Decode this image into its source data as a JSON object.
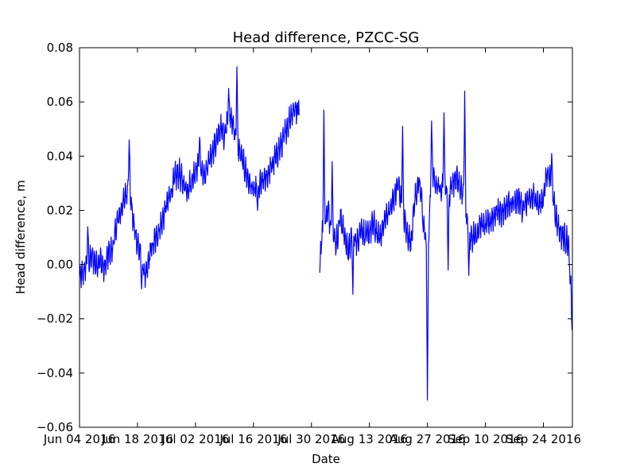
{
  "chart_data": {
    "type": "line",
    "title": "Head difference, PZCC-SG",
    "xlabel": "Date",
    "ylabel": "Head difference, m",
    "x_range": [
      "2016-06-04",
      "2016-10-01"
    ],
    "ylim": [
      -0.06,
      0.08
    ],
    "grid": false,
    "legend": "none",
    "line_color": "#0000ff",
    "x_tick_labels": [
      "Jun 04 2016",
      "Jun 18 2016",
      "Jul 02 2016",
      "Jul 16 2016",
      "Jul 30 2016",
      "Aug 13 2016",
      "Aug 27 2016",
      "Sep 10 2016",
      "Sep 24 2016"
    ],
    "x_tick_dates": [
      "2016-06-04",
      "2016-06-18",
      "2016-07-02",
      "2016-07-16",
      "2016-07-30",
      "2016-08-13",
      "2016-08-27",
      "2016-09-10",
      "2016-09-24"
    ],
    "y_ticks": [
      -0.06,
      -0.04,
      -0.02,
      0.0,
      0.02,
      0.04,
      0.06,
      0.08
    ],
    "y_tick_labels": [
      "−0.06",
      "−0.04",
      "−0.02",
      "0.00",
      "0.02",
      "0.04",
      "0.06",
      "0.08"
    ],
    "series": [
      {
        "segments": [
          [
            [
              "2016-06-04",
              -0.005
            ],
            [
              "2016-06-05",
              -0.003
            ],
            [
              "2016-06-06",
              0.001
            ],
            [
              "2016-06-07",
              0.003
            ],
            [
              "2016-06-08",
              0.0
            ],
            [
              "2016-06-09",
              0.002
            ],
            [
              "2016-06-10",
              -0.002
            ],
            [
              "2016-06-11",
              0.004
            ],
            [
              "2016-06-12",
              0.006
            ],
            [
              "2016-06-13",
              0.015
            ],
            [
              "2016-06-14",
              0.02
            ],
            [
              "2016-06-15",
              0.025
            ],
            [
              "2016-06-16",
              0.03
            ],
            [
              "2016-06-17",
              0.015
            ],
            [
              "2016-06-18",
              0.008
            ],
            [
              "2016-06-19",
              0.002
            ],
            [
              "2016-06-20",
              -0.005
            ],
            [
              "2016-06-21",
              0.004
            ],
            [
              "2016-06-22",
              0.008
            ],
            [
              "2016-06-23",
              0.012
            ],
            [
              "2016-06-24",
              0.016
            ],
            [
              "2016-06-25",
              0.022
            ],
            [
              "2016-06-26",
              0.026
            ],
            [
              "2016-06-27",
              0.032
            ],
            [
              "2016-06-28",
              0.034
            ],
            [
              "2016-06-29",
              0.03
            ],
            [
              "2016-06-30",
              0.028
            ],
            [
              "2016-07-01",
              0.03
            ],
            [
              "2016-07-02",
              0.035
            ],
            [
              "2016-07-03",
              0.038
            ],
            [
              "2016-07-04",
              0.032
            ],
            [
              "2016-07-05",
              0.036
            ],
            [
              "2016-07-06",
              0.042
            ],
            [
              "2016-07-07",
              0.045
            ],
            [
              "2016-07-08",
              0.05
            ],
            [
              "2016-07-09",
              0.048
            ],
            [
              "2016-07-10",
              0.055
            ],
            [
              "2016-07-11",
              0.052
            ],
            [
              "2016-07-12",
              0.045
            ],
            [
              "2016-07-13",
              0.04
            ],
            [
              "2016-07-14",
              0.035
            ],
            [
              "2016-07-15",
              0.03
            ],
            [
              "2016-07-16",
              0.027
            ],
            [
              "2016-07-17",
              0.028
            ],
            [
              "2016-07-18",
              0.03
            ],
            [
              "2016-07-19",
              0.032
            ],
            [
              "2016-07-20",
              0.035
            ],
            [
              "2016-07-21",
              0.038
            ],
            [
              "2016-07-22",
              0.042
            ],
            [
              "2016-07-23",
              0.045
            ],
            [
              "2016-07-24",
              0.05
            ],
            [
              "2016-07-25",
              0.055
            ],
            [
              "2016-07-26",
              0.058
            ],
            [
              "2016-07-27",
              0.055
            ]
          ],
          [
            [
              "2016-08-01",
              0.005
            ],
            [
              "2016-08-02",
              0.015
            ],
            [
              "2016-08-03",
              0.02
            ],
            [
              "2016-08-04",
              0.012
            ],
            [
              "2016-08-05",
              0.008
            ],
            [
              "2016-08-06",
              0.018
            ],
            [
              "2016-08-07",
              0.01
            ],
            [
              "2016-08-08",
              0.005
            ],
            [
              "2016-08-09",
              0.012
            ],
            [
              "2016-08-10",
              0.008
            ],
            [
              "2016-08-11",
              0.014
            ],
            [
              "2016-08-12",
              0.01
            ],
            [
              "2016-08-13",
              0.012
            ],
            [
              "2016-08-14",
              0.015
            ],
            [
              "2016-08-15",
              0.01
            ],
            [
              "2016-08-16",
              0.012
            ],
            [
              "2016-08-17",
              0.018
            ],
            [
              "2016-08-18",
              0.02
            ],
            [
              "2016-08-19",
              0.025
            ],
            [
              "2016-08-20",
              0.03
            ],
            [
              "2016-08-21",
              0.02
            ],
            [
              "2016-08-22",
              0.012
            ],
            [
              "2016-08-23",
              0.008
            ],
            [
              "2016-08-24",
              0.025
            ],
            [
              "2016-08-25",
              0.03
            ],
            [
              "2016-08-26",
              0.02
            ],
            [
              "2016-08-27",
              0.0
            ],
            [
              "2016-08-28",
              0.035
            ],
            [
              "2016-08-29",
              0.03
            ],
            [
              "2016-08-30",
              0.028
            ],
            [
              "2016-08-31",
              0.03
            ],
            [
              "2016-09-01",
              0.025
            ],
            [
              "2016-09-02",
              0.03
            ],
            [
              "2016-09-03",
              0.032
            ],
            [
              "2016-09-04",
              0.028
            ],
            [
              "2016-09-05",
              0.025
            ],
            [
              "2016-09-06",
              0.012
            ],
            [
              "2016-09-07",
              0.01
            ],
            [
              "2016-09-08",
              0.012
            ],
            [
              "2016-09-09",
              0.015
            ],
            [
              "2016-09-10",
              0.014
            ],
            [
              "2016-09-11",
              0.016
            ],
            [
              "2016-09-12",
              0.018
            ],
            [
              "2016-09-13",
              0.02
            ],
            [
              "2016-09-14",
              0.019
            ],
            [
              "2016-09-15",
              0.021
            ],
            [
              "2016-09-16",
              0.022
            ],
            [
              "2016-09-17",
              0.022
            ],
            [
              "2016-09-18",
              0.024
            ],
            [
              "2016-09-19",
              0.021
            ],
            [
              "2016-09-20",
              0.023
            ],
            [
              "2016-09-21",
              0.024
            ],
            [
              "2016-09-22",
              0.025
            ],
            [
              "2016-09-23",
              0.022
            ],
            [
              "2016-09-24",
              0.025
            ],
            [
              "2016-09-25",
              0.035
            ],
            [
              "2016-09-26",
              0.03
            ],
            [
              "2016-09-27",
              0.018
            ],
            [
              "2016-09-28",
              0.012
            ],
            [
              "2016-09-29",
              0.01
            ],
            [
              "2016-09-30",
              0.008
            ],
            [
              "2016-10-01",
              -0.02
            ]
          ]
        ],
        "peaks": [
          [
            "2016-06-06",
            0.014
          ],
          [
            "2016-06-16",
            0.046
          ],
          [
            "2016-06-19",
            -0.009
          ],
          [
            "2016-07-03",
            0.047
          ],
          [
            "2016-07-10",
            0.065
          ],
          [
            "2016-07-12",
            0.073
          ],
          [
            "2016-07-17",
            0.02
          ],
          [
            "2016-07-27",
            0.063
          ],
          [
            "2016-08-01",
            -0.003
          ],
          [
            "2016-08-02",
            0.057
          ],
          [
            "2016-08-04",
            0.038
          ],
          [
            "2016-08-09",
            -0.011
          ],
          [
            "2016-08-21",
            0.051
          ],
          [
            "2016-08-26",
            0.012
          ],
          [
            "2016-08-27",
            -0.05
          ],
          [
            "2016-08-28",
            0.053
          ],
          [
            "2016-08-31",
            0.056
          ],
          [
            "2016-09-01",
            -0.002
          ],
          [
            "2016-09-05",
            0.064
          ],
          [
            "2016-09-06",
            -0.004
          ],
          [
            "2016-09-26",
            0.041
          ],
          [
            "2016-10-01",
            -0.025
          ]
        ]
      }
    ]
  }
}
